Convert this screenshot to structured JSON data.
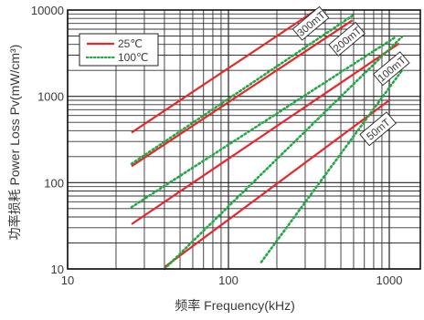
{
  "chart_data": {
    "type": "line",
    "title": "",
    "xlabel": "频率 Frequency(kHz)",
    "ylabel": "功率损耗 Power Loss Pv(mW/cm³)",
    "xscale": "log",
    "yscale": "log",
    "xlim": [
      10,
      1400
    ],
    "ylim": [
      10,
      10000
    ],
    "x_ticks": [
      10,
      100,
      1000
    ],
    "x_tick_labels": [
      "10",
      "100",
      "1000"
    ],
    "y_ticks": [
      10,
      100,
      1000,
      10000
    ],
    "y_tick_labels": [
      "10",
      "100",
      "1000",
      "10000"
    ],
    "grid": true,
    "legend_position": "top-left",
    "legend": [
      {
        "label": "25℃",
        "color": "#e8262b",
        "style": "solid"
      },
      {
        "label": "100℃",
        "color": "#22a845",
        "style": "dotted"
      }
    ],
    "curve_labels": [
      "300mT",
      "200mT",
      "100mT",
      "50mT"
    ],
    "series": [
      {
        "flux": "300mT",
        "temp": "25",
        "color": "#e8262b",
        "style": "solid",
        "x": [
          25,
          350
        ],
        "y": [
          380,
          10000
        ]
      },
      {
        "flux": "200mT",
        "temp": "25",
        "color": "#e8262b",
        "style": "solid",
        "x": [
          25,
          590
        ],
        "y": [
          155,
          7600
        ]
      },
      {
        "flux": "100mT",
        "temp": "25",
        "color": "#e8262b",
        "style": "solid",
        "x": [
          25,
          1150
        ],
        "y": [
          33,
          4100
        ]
      },
      {
        "flux": "50mT",
        "temp": "25",
        "color": "#e8262b",
        "style": "solid",
        "x": [
          40,
          1000
        ],
        "y": [
          10.5,
          900
        ]
      },
      {
        "flux": "300mT",
        "temp": "100",
        "color": "#22a845",
        "style": "dotted",
        "x": [
          25,
          590
        ],
        "y": [
          165,
          8600
        ]
      },
      {
        "flux": "200mT",
        "temp": "100",
        "color": "#22a845",
        "style": "dotted",
        "x": [
          25,
          1100
        ],
        "y": [
          52,
          4900
        ]
      },
      {
        "flux": "100mT",
        "temp": "100",
        "color": "#22a845",
        "style": "dotted",
        "x": [
          40,
          1200
        ],
        "y": [
          10,
          4900
        ]
      },
      {
        "flux": "50mT",
        "temp": "100",
        "color": "#22a845",
        "style": "dotted",
        "x": [
          160,
          1200
        ],
        "y": [
          12,
          2000
        ]
      }
    ]
  }
}
